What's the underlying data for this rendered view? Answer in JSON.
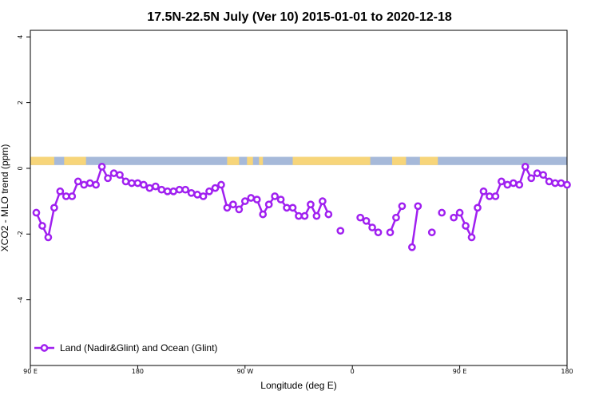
{
  "chart_data": {
    "type": "line",
    "title": "17.5N-22.5N July (Ver 10)   2015-01-01 to 2020-12-18",
    "xlabel": "Longitude (deg E)",
    "ylabel": "XCO2 - MLO trend (ppm)",
    "xlim": [
      -90,
      180
    ],
    "ylim": [
      -6,
      4.2
    ],
    "x_ticks": [
      {
        "value": -90,
        "label": "90 E"
      },
      {
        "value": -36,
        "label": "180"
      },
      {
        "value": 18,
        "label": "90 W"
      },
      {
        "value": 72,
        "label": "0"
      },
      {
        "value": 126,
        "label": "90 E"
      },
      {
        "value": 180,
        "label": "180"
      }
    ],
    "y_ticks": [
      {
        "value": 4,
        "label": "4"
      },
      {
        "value": 2,
        "label": "2"
      },
      {
        "value": 0,
        "label": "0"
      },
      {
        "value": -2,
        "label": "-2"
      },
      {
        "value": -4,
        "label": "-4"
      }
    ],
    "land_strip": {
      "ymin": 0.1,
      "ymax": 0.35,
      "ocean_color": "#a6b9d9",
      "land_color": "#f7d57a",
      "land_ranges": [
        [
          -90,
          -78
        ],
        [
          -73,
          -62
        ],
        [
          9,
          15
        ],
        [
          19,
          22
        ],
        [
          25,
          27
        ],
        [
          42,
          81
        ],
        [
          92,
          99
        ],
        [
          106,
          115
        ]
      ]
    },
    "series": [
      {
        "name": "Land (Nadir&Glint) and Ocean (Glint)",
        "color": "#a020f0",
        "segments": [
          [
            [
              -87,
              -1.35
            ],
            [
              -84,
              -1.75
            ],
            [
              -81,
              -2.1
            ],
            [
              -78,
              -1.2
            ],
            [
              -75,
              -0.7
            ],
            [
              -72,
              -0.85
            ],
            [
              -69,
              -0.85
            ],
            [
              -66,
              -0.4
            ],
            [
              -63,
              -0.5
            ],
            [
              -60,
              -0.45
            ],
            [
              -57,
              -0.5
            ],
            [
              -54,
              0.05
            ],
            [
              -51,
              -0.3
            ],
            [
              -48,
              -0.15
            ],
            [
              -45,
              -0.2
            ],
            [
              -42,
              -0.4
            ],
            [
              -39,
              -0.45
            ],
            [
              -36,
              -0.45
            ],
            [
              -33,
              -0.5
            ],
            [
              -30,
              -0.6
            ],
            [
              -27,
              -0.55
            ],
            [
              -24,
              -0.65
            ],
            [
              -21,
              -0.7
            ],
            [
              -18,
              -0.7
            ],
            [
              -15,
              -0.65
            ],
            [
              -12,
              -0.65
            ],
            [
              -9,
              -0.75
            ],
            [
              -6,
              -0.8
            ],
            [
              -3,
              -0.85
            ],
            [
              0,
              -0.7
            ],
            [
              3,
              -0.6
            ],
            [
              6,
              -0.5
            ],
            [
              9,
              -1.2
            ],
            [
              12,
              -1.1
            ],
            [
              15,
              -1.25
            ],
            [
              18,
              -1.0
            ],
            [
              21,
              -0.9
            ],
            [
              24,
              -0.95
            ],
            [
              27,
              -1.4
            ],
            [
              30,
              -1.1
            ],
            [
              33,
              -0.85
            ],
            [
              36,
              -0.95
            ],
            [
              39,
              -1.2
            ],
            [
              42,
              -1.2
            ],
            [
              45,
              -1.45
            ],
            [
              48,
              -1.45
            ],
            [
              51,
              -1.1
            ],
            [
              54,
              -1.45
            ],
            [
              57,
              -1.0
            ],
            [
              60,
              -1.4
            ]
          ],
          [
            [
              66,
              -1.9
            ]
          ],
          [
            [
              76,
              -1.5
            ],
            [
              79,
              -1.6
            ],
            [
              82,
              -1.8
            ],
            [
              85,
              -1.95
            ]
          ],
          [
            [
              91,
              -1.95
            ],
            [
              94,
              -1.5
            ],
            [
              97,
              -1.15
            ]
          ],
          [
            [
              102,
              -2.4
            ],
            [
              105,
              -1.15
            ]
          ],
          [
            [
              112,
              -1.95
            ]
          ],
          [
            [
              117,
              -1.35
            ]
          ],
          [
            [
              123,
              -1.5
            ],
            [
              126,
              -1.35
            ],
            [
              129,
              -1.75
            ],
            [
              132,
              -2.1
            ],
            [
              135,
              -1.2
            ],
            [
              138,
              -0.7
            ],
            [
              141,
              -0.85
            ],
            [
              144,
              -0.85
            ],
            [
              147,
              -0.4
            ],
            [
              150,
              -0.5
            ],
            [
              153,
              -0.45
            ],
            [
              156,
              -0.5
            ],
            [
              159,
              0.05
            ],
            [
              162,
              -0.3
            ],
            [
              165,
              -0.15
            ],
            [
              168,
              -0.2
            ],
            [
              171,
              -0.4
            ],
            [
              174,
              -0.45
            ],
            [
              177,
              -0.45
            ],
            [
              180,
              -0.5
            ]
          ]
        ]
      }
    ],
    "legend": {
      "position": "bottom-left",
      "label": "Land (Nadir&Glint) and Ocean (Glint)"
    },
    "grid": false
  }
}
